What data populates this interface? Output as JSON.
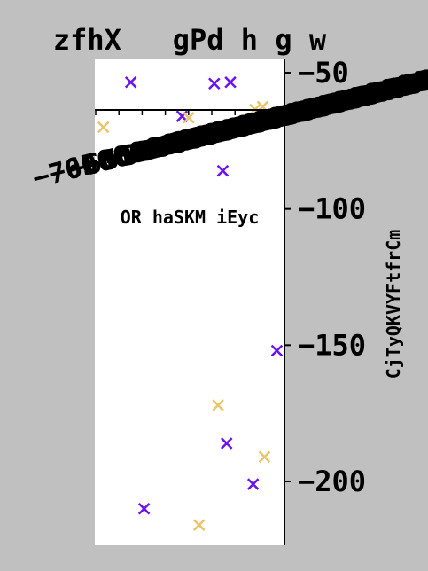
{
  "chart_data": {
    "type": "scatter",
    "title": "zfhX   gPd h g w",
    "ylabel": "CjTyQKVYFtfrCm",
    "ylim": [
      -223,
      -45
    ],
    "yticks": [
      -50,
      -100,
      -150,
      -200
    ],
    "ytick_labels": [
      "−50",
      "−100",
      "−150",
      "−200"
    ],
    "y_axis_side": "right",
    "grid": false,
    "legend": "none",
    "annotation": "OR haSKM iEyc",
    "colors": {
      "purple": "#6a12f0",
      "gold": "#e8c56a",
      "background": "#c0c0c0",
      "plot": "#ffffff"
    },
    "inset_x_axis": {
      "xlim": [
        -7700000000000000,
        -7000000000000000
      ],
      "ticks": [
        -7000000000000000,
        -6500000000000000,
        -6000000000000000,
        -5500000000000000,
        -5000000000000000,
        -4500000000000000,
        -4000000000000000,
        -3500000000000000,
        -3000000000000000,
        -2500000000000000,
        -2000000000000000,
        -1000000000000000
      ],
      "tick_labels": [
        "−7000000000000000",
        "−6500000000000000",
        "−6000000000000000",
        "−5500000000000000",
        "−5000000000000000",
        "−4500000000000000",
        "−4000000000000000",
        "−3500000000000000",
        "−3000000000000000",
        "−2500000000000000",
        "−2000000000000000",
        "−1000000000000000"
      ]
    },
    "xlim": [
      0,
      100
    ],
    "series": [
      {
        "color": "#6a12f0",
        "marker": "x",
        "points": [
          {
            "x": 19,
            "y": -53.5
          },
          {
            "x": 63,
            "y": -54
          },
          {
            "x": 71.5,
            "y": -53.5
          },
          {
            "x": 46,
            "y": -66
          },
          {
            "x": 67.5,
            "y": -86
          },
          {
            "x": 96,
            "y": -152
          },
          {
            "x": 69.5,
            "y": -186
          },
          {
            "x": 83.5,
            "y": -201
          },
          {
            "x": 26,
            "y": -210
          }
        ]
      },
      {
        "color": "#e8c56a",
        "marker": "x",
        "points": [
          {
            "x": 4.5,
            "y": -70
          },
          {
            "x": 49.5,
            "y": -66.5
          },
          {
            "x": 84.5,
            "y": -63.5
          },
          {
            "x": 88.5,
            "y": -62.5
          },
          {
            "x": 65,
            "y": -172
          },
          {
            "x": 89.5,
            "y": -191
          },
          {
            "x": 55,
            "y": -216
          }
        ]
      }
    ]
  }
}
